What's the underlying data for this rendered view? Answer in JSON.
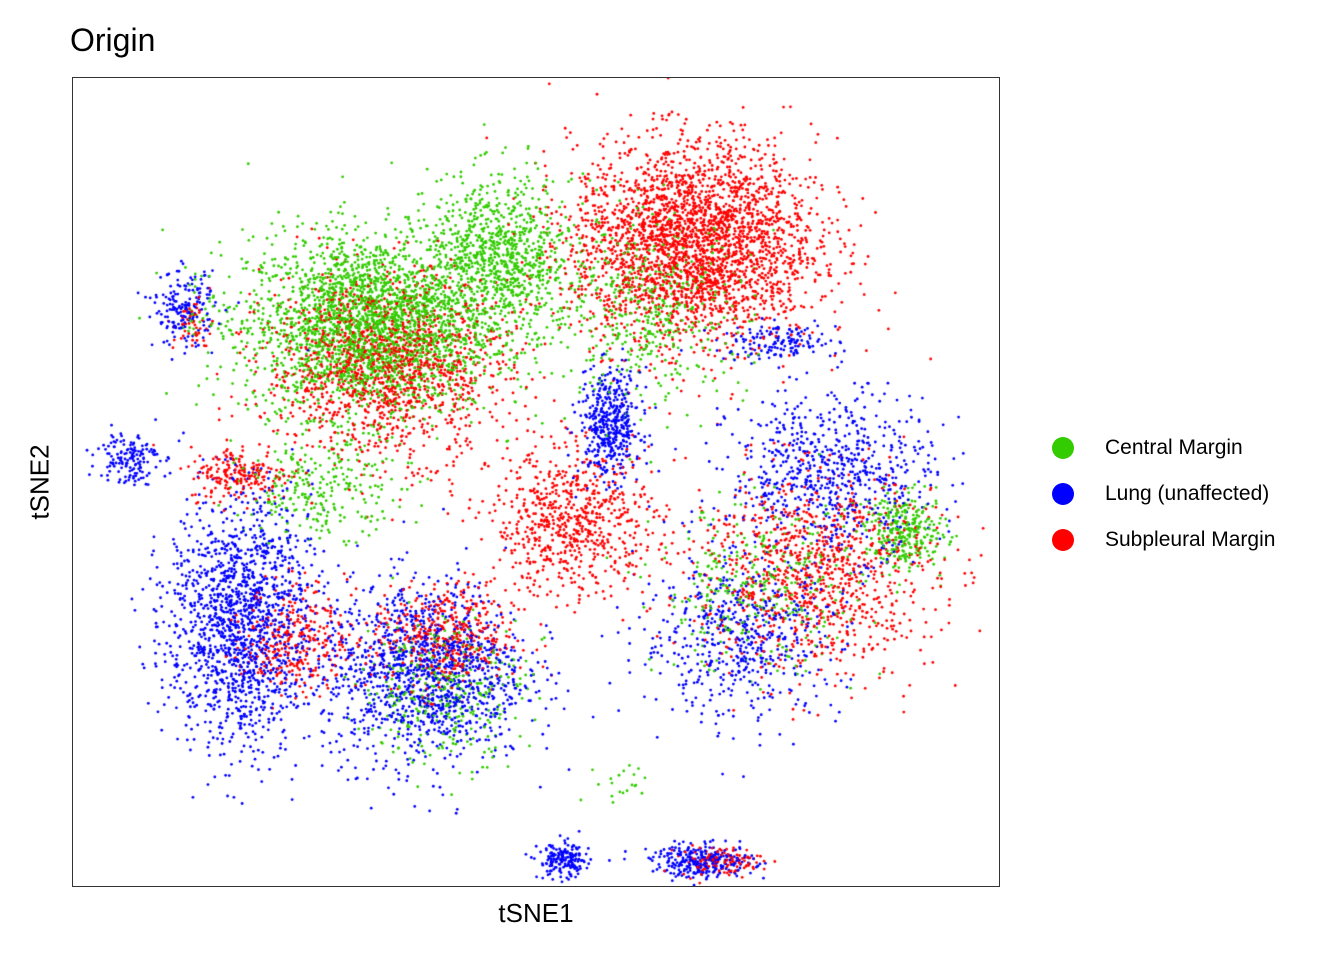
{
  "chart_data": {
    "type": "scatter",
    "title": "Origin",
    "xlabel": "tSNE1",
    "ylabel": "tSNE2",
    "xlim": [
      -52,
      48
    ],
    "ylim": [
      -48,
      50
    ],
    "grid": false,
    "ticks": false,
    "legend_placement": "right",
    "legend_title": "",
    "series": [
      {
        "name": "Central Margin",
        "color": "#33cc00",
        "clusters": [
          {
            "center": [
              -20,
              20
            ],
            "spread": [
              12,
              10
            ],
            "count": 2600
          },
          {
            "center": [
              -6,
              28
            ],
            "spread": [
              7,
              9
            ],
            "count": 900
          },
          {
            "center": [
              -25,
              0
            ],
            "spread": [
              8,
              5
            ],
            "count": 250
          },
          {
            "center": [
              -12,
              -24
            ],
            "spread": [
              8,
              8
            ],
            "count": 350
          },
          {
            "center": [
              10,
              22
            ],
            "spread": [
              10,
              10
            ],
            "count": 500
          },
          {
            "center": [
              22,
              -12
            ],
            "spread": [
              10,
              9
            ],
            "count": 350
          },
          {
            "center": [
              38,
              -5
            ],
            "spread": [
              4,
              4
            ],
            "count": 300
          },
          {
            "center": [
              -38,
              22
            ],
            "spread": [
              3,
              3
            ],
            "count": 30
          },
          {
            "center": [
              8,
              -36
            ],
            "spread": [
              3,
              3
            ],
            "count": 20
          }
        ]
      },
      {
        "name": "Lung (unaffected)",
        "color": "#0000ff",
        "clusters": [
          {
            "center": [
              -34,
              -16
            ],
            "spread": [
              7,
              14
            ],
            "count": 1500
          },
          {
            "center": [
              -14,
              -22
            ],
            "spread": [
              10,
              10
            ],
            "count": 1300
          },
          {
            "center": [
              6,
              8
            ],
            "spread": [
              3,
              6
            ],
            "count": 450
          },
          {
            "center": [
              30,
              2
            ],
            "spread": [
              10,
              9
            ],
            "count": 700
          },
          {
            "center": [
              20,
              -18
            ],
            "spread": [
              10,
              9
            ],
            "count": 550
          },
          {
            "center": [
              -40,
              22
            ],
            "spread": [
              3,
              4
            ],
            "count": 180
          },
          {
            "center": [
              1,
              -45
            ],
            "spread": [
              2.5,
              2
            ],
            "count": 180
          },
          {
            "center": [
              16,
              -45
            ],
            "spread": [
              5,
              1.8
            ],
            "count": 280
          },
          {
            "center": [
              24,
              18
            ],
            "spread": [
              6,
              2
            ],
            "count": 150
          },
          {
            "center": [
              -46,
              4
            ],
            "spread": [
              3,
              3
            ],
            "count": 150
          }
        ]
      },
      {
        "name": "Subpleural Margin",
        "color": "#ff0000",
        "clusters": [
          {
            "center": [
              15,
              30
            ],
            "spread": [
              12,
              11
            ],
            "count": 2800
          },
          {
            "center": [
              -18,
              15
            ],
            "spread": [
              12,
              10
            ],
            "count": 1400
          },
          {
            "center": [
              2,
              -4
            ],
            "spread": [
              8,
              8
            ],
            "count": 700
          },
          {
            "center": [
              28,
              -10
            ],
            "spread": [
              12,
              11
            ],
            "count": 1000
          },
          {
            "center": [
              -28,
              -18
            ],
            "spread": [
              5,
              6
            ],
            "count": 300
          },
          {
            "center": [
              -12,
              -18
            ],
            "spread": [
              7,
              6
            ],
            "count": 450
          },
          {
            "center": [
              -34,
              2
            ],
            "spread": [
              5,
              3
            ],
            "count": 200
          },
          {
            "center": [
              18,
              -45
            ],
            "spread": [
              4,
              1.6
            ],
            "count": 120
          },
          {
            "center": [
              -39,
              20
            ],
            "spread": [
              2,
              3
            ],
            "count": 50
          }
        ]
      }
    ]
  }
}
